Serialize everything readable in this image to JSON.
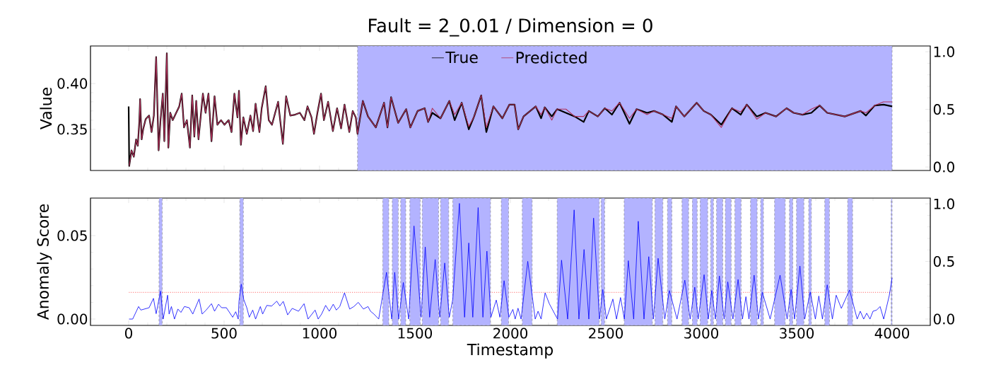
{
  "chart_data": [
    {
      "type": "line",
      "title": "Fault = 2_0.01 / Dimension = 0",
      "ylabel": "Value",
      "legend": "top",
      "tick_labels": "y",
      "xlim": [
        -200,
        4200
      ],
      "xticks": [
        0,
        500,
        1000,
        1500,
        2000,
        2500,
        3000,
        3500,
        4000
      ],
      "ylim": [
        0.305,
        0.441
      ],
      "yticks": [
        {
          "value": 0.35,
          "label": "0.35"
        },
        {
          "value": 0.4,
          "label": "0.40"
        }
      ],
      "y2lim": [
        -0.03,
        1.05
      ],
      "y2ticks": [
        {
          "value": 0,
          "label": "0.0"
        },
        {
          "value": 0.5,
          "label": "0.5"
        },
        {
          "value": 1,
          "label": "1.0"
        }
      ],
      "bands": [
        {
          "axis": "x",
          "from": 1199,
          "to": 4000,
          "color": "#b3b3ff"
        }
      ],
      "series": [
        {
          "name": "True",
          "color": "#000000",
          "x": [
            0,
            3,
            15,
            27,
            39,
            48,
            56,
            60,
            68,
            76,
            89,
            107,
            120,
            132,
            144,
            157,
            167,
            179,
            187,
            200,
            208,
            218,
            231,
            249,
            265,
            278,
            290,
            305,
            321,
            333,
            344,
            354,
            366,
            389,
            403,
            418,
            434,
            450,
            465,
            484,
            502,
            524,
            539,
            554,
            570,
            578,
            588,
            601,
            619,
            638,
            652,
            665,
            685,
            697,
            718,
            734,
            751,
            783,
            808,
            825,
            847,
            872,
            897,
            921,
            937,
            958,
            971,
            989,
            1008,
            1023,
            1045,
            1070,
            1092,
            1113,
            1131,
            1156,
            1174,
            1190,
            1199,
            1227,
            1254,
            1295,
            1338,
            1356,
            1375,
            1412,
            1454,
            1476,
            1514,
            1551,
            1569,
            1591,
            1634,
            1680,
            1708,
            1745,
            1782,
            1810,
            1847,
            1874,
            1911,
            1958,
            1995,
            2022,
            2041,
            2069,
            2133,
            2161,
            2180,
            2217,
            2245,
            2291,
            2337,
            2384,
            2411,
            2458,
            2495,
            2532,
            2572,
            2624,
            2661,
            2716,
            2753,
            2800,
            2846,
            2868,
            2911,
            2976,
            3013,
            3050,
            3105,
            3161,
            3207,
            3238,
            3291,
            3337,
            3392,
            3447,
            3484,
            3530,
            3577,
            3620,
            3660,
            3752,
            3835,
            3863,
            3909,
            3955,
            4000
          ],
          "values": [
            0.375,
            0.31,
            0.327,
            0.32,
            0.339,
            0.332,
            0.359,
            0.383,
            0.339,
            0.35,
            0.361,
            0.365,
            0.347,
            0.365,
            0.429,
            0.327,
            0.36,
            0.389,
            0.337,
            0.433,
            0.33,
            0.368,
            0.36,
            0.368,
            0.375,
            0.389,
            0.352,
            0.36,
            0.33,
            0.387,
            0.342,
            0.381,
            0.339,
            0.389,
            0.368,
            0.389,
            0.337,
            0.386,
            0.355,
            0.36,
            0.355,
            0.36,
            0.347,
            0.389,
            0.363,
            0.392,
            0.333,
            0.363,
            0.345,
            0.365,
            0.348,
            0.378,
            0.347,
            0.373,
            0.397,
            0.36,
            0.355,
            0.38,
            0.334,
            0.386,
            0.365,
            0.366,
            0.368,
            0.36,
            0.375,
            0.363,
            0.345,
            0.368,
            0.389,
            0.36,
            0.38,
            0.348,
            0.373,
            0.351,
            0.377,
            0.347,
            0.37,
            0.363,
            0.345,
            0.381,
            0.364,
            0.352,
            0.379,
            0.352,
            0.385,
            0.357,
            0.372,
            0.352,
            0.37,
            0.373,
            0.358,
            0.368,
            0.362,
            0.381,
            0.36,
            0.379,
            0.35,
            0.364,
            0.387,
            0.347,
            0.375,
            0.362,
            0.377,
            0.377,
            0.35,
            0.364,
            0.375,
            0.362,
            0.374,
            0.364,
            0.372,
            0.368,
            0.364,
            0.358,
            0.37,
            0.364,
            0.373,
            0.366,
            0.379,
            0.356,
            0.372,
            0.368,
            0.37,
            0.366,
            0.358,
            0.375,
            0.364,
            0.379,
            0.37,
            0.366,
            0.355,
            0.373,
            0.366,
            0.377,
            0.364,
            0.368,
            0.364,
            0.373,
            0.368,
            0.366,
            0.368,
            0.376,
            0.368,
            0.364,
            0.37,
            0.365,
            0.376,
            0.377,
            0.375
          ]
        },
        {
          "name": "Predicted",
          "color": "#b0305a",
          "x": [
            3,
            15,
            27,
            39,
            48,
            56,
            60,
            68,
            76,
            89,
            107,
            120,
            132,
            144,
            157,
            167,
            179,
            187,
            200,
            208,
            218,
            231,
            249,
            265,
            278,
            290,
            305,
            321,
            333,
            344,
            354,
            366,
            389,
            403,
            418,
            434,
            450,
            465,
            484,
            502,
            524,
            539,
            554,
            570,
            578,
            588,
            601,
            619,
            638,
            652,
            665,
            685,
            697,
            718,
            734,
            751,
            783,
            808,
            825,
            847,
            872,
            897,
            921,
            937,
            958,
            971,
            989,
            1008,
            1023,
            1045,
            1070,
            1092,
            1113,
            1131,
            1156,
            1174,
            1190,
            1199,
            1227,
            1254,
            1295,
            1338,
            1356,
            1375,
            1412,
            1454,
            1476,
            1514,
            1551,
            1569,
            1591,
            1634,
            1680,
            1708,
            1745,
            1782,
            1810,
            1847,
            1874,
            1911,
            1958,
            1995,
            2022,
            2041,
            2069,
            2133,
            2161,
            2180,
            2217,
            2245,
            2291,
            2337,
            2384,
            2411,
            2458,
            2495,
            2532,
            2572,
            2624,
            2661,
            2716,
            2753,
            2800,
            2846,
            2868,
            2911,
            2976,
            3013,
            3050,
            3105,
            3161,
            3207,
            3238,
            3291,
            3337,
            3392,
            3447,
            3484,
            3530,
            3577,
            3620,
            3660,
            3752,
            3835,
            3863,
            3909,
            3955,
            4000
          ],
          "values": [
            0.31,
            0.327,
            0.32,
            0.339,
            0.332,
            0.359,
            0.383,
            0.339,
            0.35,
            0.361,
            0.365,
            0.347,
            0.365,
            0.429,
            0.327,
            0.36,
            0.389,
            0.337,
            0.433,
            0.33,
            0.368,
            0.36,
            0.368,
            0.375,
            0.389,
            0.352,
            0.36,
            0.33,
            0.387,
            0.342,
            0.381,
            0.339,
            0.389,
            0.368,
            0.389,
            0.337,
            0.386,
            0.355,
            0.36,
            0.355,
            0.36,
            0.347,
            0.389,
            0.363,
            0.392,
            0.333,
            0.363,
            0.345,
            0.365,
            0.348,
            0.378,
            0.347,
            0.373,
            0.397,
            0.36,
            0.355,
            0.38,
            0.334,
            0.386,
            0.365,
            0.366,
            0.368,
            0.36,
            0.375,
            0.363,
            0.345,
            0.368,
            0.389,
            0.36,
            0.38,
            0.348,
            0.373,
            0.351,
            0.377,
            0.347,
            0.37,
            0.363,
            0.345,
            0.381,
            0.364,
            0.352,
            0.379,
            0.352,
            0.385,
            0.357,
            0.372,
            0.352,
            0.37,
            0.373,
            0.358,
            0.373,
            0.362,
            0.381,
            0.366,
            0.379,
            0.353,
            0.364,
            0.387,
            0.352,
            0.375,
            0.362,
            0.377,
            0.377,
            0.35,
            0.364,
            0.375,
            0.366,
            0.374,
            0.36,
            0.372,
            0.372,
            0.364,
            0.364,
            0.37,
            0.364,
            0.373,
            0.37,
            0.379,
            0.362,
            0.372,
            0.366,
            0.37,
            0.366,
            0.362,
            0.375,
            0.364,
            0.379,
            0.37,
            0.366,
            0.352,
            0.373,
            0.369,
            0.377,
            0.361,
            0.368,
            0.364,
            0.373,
            0.368,
            0.366,
            0.372,
            0.376,
            0.368,
            0.364,
            0.37,
            0.368,
            0.376,
            0.38,
            0.38
          ]
        }
      ]
    },
    {
      "type": "line",
      "xlabel": "Timestamp",
      "ylabel": "Anomaly Score",
      "xlim": [
        -200,
        4200
      ],
      "xticks": [
        0,
        500,
        1000,
        1500,
        2000,
        2500,
        3000,
        3500,
        4000
      ],
      "ylim": [
        -0.0038,
        0.0725
      ],
      "yticks": [
        {
          "value": 0,
          "label": "0.00"
        },
        {
          "value": 0.05,
          "label": "0.05"
        }
      ],
      "y2lim": [
        -0.055,
        1.05
      ],
      "y2ticks": [
        {
          "value": 0,
          "label": "0.0"
        },
        {
          "value": 0.5,
          "label": "0.5"
        },
        {
          "value": 1,
          "label": "1.0"
        }
      ],
      "ref_lines": [
        {
          "axis": "y",
          "value": 0.016,
          "color": "#ff0000",
          "line_style": "dotted"
        }
      ],
      "bands": [
        {
          "axis": "x",
          "from": 159,
          "to": 176,
          "color": "#b3b3ff"
        },
        {
          "axis": "x",
          "from": 582,
          "to": 601,
          "color": "#b3b3ff"
        },
        {
          "axis": "x",
          "from": 1331,
          "to": 1363,
          "color": "#b3b3ff"
        },
        {
          "axis": "x",
          "from": 1381,
          "to": 1413,
          "color": "#b3b3ff"
        },
        {
          "axis": "x",
          "from": 1425,
          "to": 1452,
          "color": "#b3b3ff"
        },
        {
          "axis": "x",
          "from": 1473,
          "to": 1528,
          "color": "#b3b3ff"
        },
        {
          "axis": "x",
          "from": 1538,
          "to": 1624,
          "color": "#b3b3ff"
        },
        {
          "axis": "x",
          "from": 1634,
          "to": 1677,
          "color": "#b3b3ff"
        },
        {
          "axis": "x",
          "from": 1698,
          "to": 1896,
          "color": "#b3b3ff"
        },
        {
          "axis": "x",
          "from": 1952,
          "to": 1991,
          "color": "#b3b3ff"
        },
        {
          "axis": "x",
          "from": 2062,
          "to": 2114,
          "color": "#b3b3ff"
        },
        {
          "axis": "x",
          "from": 2245,
          "to": 2466,
          "color": "#b3b3ff"
        },
        {
          "axis": "x",
          "from": 2475,
          "to": 2494,
          "color": "#b3b3ff"
        },
        {
          "axis": "x",
          "from": 2596,
          "to": 2744,
          "color": "#b3b3ff"
        },
        {
          "axis": "x",
          "from": 2757,
          "to": 2799,
          "color": "#b3b3ff"
        },
        {
          "axis": "x",
          "from": 2823,
          "to": 2846,
          "color": "#b3b3ff"
        },
        {
          "axis": "x",
          "from": 2899,
          "to": 2934,
          "color": "#b3b3ff"
        },
        {
          "axis": "x",
          "from": 2953,
          "to": 2979,
          "color": "#b3b3ff"
        },
        {
          "axis": "x",
          "from": 2994,
          "to": 3034,
          "color": "#b3b3ff"
        },
        {
          "axis": "x",
          "from": 3049,
          "to": 3064,
          "color": "#b3b3ff"
        },
        {
          "axis": "x",
          "from": 3080,
          "to": 3113,
          "color": "#b3b3ff"
        },
        {
          "axis": "x",
          "from": 3126,
          "to": 3157,
          "color": "#b3b3ff"
        },
        {
          "axis": "x",
          "from": 3176,
          "to": 3209,
          "color": "#b3b3ff"
        },
        {
          "axis": "x",
          "from": 3258,
          "to": 3293,
          "color": "#b3b3ff"
        },
        {
          "axis": "x",
          "from": 3311,
          "to": 3326,
          "color": "#b3b3ff"
        },
        {
          "axis": "x",
          "from": 3384,
          "to": 3440,
          "color": "#b3b3ff"
        },
        {
          "axis": "x",
          "from": 3462,
          "to": 3480,
          "color": "#b3b3ff"
        },
        {
          "axis": "x",
          "from": 3499,
          "to": 3538,
          "color": "#b3b3ff"
        },
        {
          "axis": "x",
          "from": 3563,
          "to": 3577,
          "color": "#b3b3ff"
        },
        {
          "axis": "x",
          "from": 3647,
          "to": 3672,
          "color": "#b3b3ff"
        },
        {
          "axis": "x",
          "from": 3767,
          "to": 3793,
          "color": "#b3b3ff"
        },
        {
          "axis": "x",
          "from": 3995,
          "to": 4000,
          "color": "#b3b3ff"
        }
      ],
      "series": [
        {
          "color": "#0000ff",
          "x": [
            2,
            21,
            52,
            64,
            107,
            130,
            144,
            167,
            181,
            204,
            212,
            224,
            240,
            258,
            274,
            292,
            317,
            336,
            369,
            385,
            406,
            434,
            450,
            471,
            487,
            512,
            545,
            561,
            574,
            578,
            590,
            603,
            619,
            632,
            650,
            665,
            690,
            702,
            724,
            749,
            776,
            792,
            810,
            833,
            857,
            890,
            919,
            940,
            977,
            993,
            1011,
            1032,
            1051,
            1072,
            1088,
            1106,
            1131,
            1158,
            1180,
            1203,
            1230,
            1254,
            1267,
            1285,
            1310,
            1331,
            1351,
            1378,
            1394,
            1415,
            1439,
            1467,
            1495,
            1532,
            1554,
            1577,
            1606,
            1630,
            1656,
            1680,
            1698,
            1733,
            1760,
            1782,
            1803,
            1831,
            1856,
            1877,
            1898,
            1926,
            1945,
            1967,
            1992,
            2013,
            2025,
            2040,
            2056,
            2091,
            2130,
            2145,
            2161,
            2182,
            2204,
            2235,
            2247,
            2268,
            2300,
            2334,
            2359,
            2386,
            2411,
            2436,
            2467,
            2484,
            2503,
            2537,
            2556,
            2577,
            2597,
            2618,
            2646,
            2670,
            2700,
            2725,
            2749,
            2774,
            2809,
            2833,
            2873,
            2914,
            2942,
            2966,
            2984,
            3015,
            3037,
            3055,
            3074,
            3095,
            3120,
            3139,
            3166,
            3193,
            3216,
            3234,
            3250,
            3277,
            3300,
            3320,
            3361,
            3413,
            3450,
            3471,
            3489,
            3517,
            3542,
            3571,
            3598,
            3616,
            3635,
            3660,
            3687,
            3707,
            3734,
            3777,
            3817,
            3833,
            3851,
            3867,
            3884,
            3900,
            3919,
            3937,
            3956,
            3985,
            4000
          ],
          "values": [
            0,
            0,
            0.0075,
            0.0054,
            0.0068,
            0.0124,
            0.0032,
            0.0167,
            0,
            0.0143,
            0.003,
            0.0075,
            0,
            0.006,
            0.004,
            0.0075,
            0.0068,
            0.003,
            0.012,
            0.003,
            0.0054,
            0.0092,
            0.0047,
            0.0089,
            0.0068,
            0.0068,
            0.0011,
            0.0044,
            0,
            0.0106,
            0.0209,
            0.0117,
            0.0068,
            0.0011,
            0.0054,
            0,
            0.0075,
            0.003,
            0.0082,
            0.0078,
            0.0107,
            0.0079,
            0.0106,
            0.0025,
            0.0064,
            0.0047,
            0.0092,
            0,
            0.0054,
            0,
            0.003,
            0.0082,
            0.0047,
            0.0089,
            0.0054,
            0.0075,
            0.0157,
            0.006,
            0.0075,
            0.01,
            0.006,
            0.0075,
            0.0047,
            0.003,
            0,
            0.0145,
            0.028,
            0,
            0.028,
            0,
            0.0219,
            0,
            0.0558,
            0.0011,
            0.0432,
            0.0011,
            0.0357,
            0.0011,
            0.0336,
            0.0011,
            0.0117,
            0.0693,
            0.0011,
            0.0456,
            0.0011,
            0.0668,
            0.0011,
            0.0407,
            0.0011,
            0.0114,
            0.0011,
            0.023,
            0.0011,
            0.0058,
            0,
            0.0065,
            0,
            0.0346,
            0,
            0.0047,
            0,
            0.0157,
            0.0092,
            0.0025,
            0,
            0.0353,
            0,
            0.0654,
            0,
            0.0417,
            0,
            0.0605,
            0,
            0.0177,
            0,
            0.012,
            0,
            0.0129,
            0,
            0.035,
            0,
            0.0586,
            0,
            0.0374,
            0,
            0.0364,
            0,
            0.0171,
            0,
            0.0233,
            0,
            0.0191,
            0,
            0.0266,
            0,
            0.0171,
            0,
            0.0258,
            0,
            0.0223,
            0,
            0.0237,
            0,
            0.0134,
            0,
            0.0263,
            0,
            0.016,
            0,
            0.0263,
            0,
            0.0177,
            0,
            0.0318,
            0,
            0.0162,
            0,
            0.0138,
            0,
            0.0205,
            0,
            0.0143,
            0.0064,
            0.0174,
            0,
            0.0047,
            0,
            0.0035,
            0,
            0.0047,
            0.0054,
            0.0075,
            0,
            0.014,
            0.0247
          ]
        }
      ]
    }
  ]
}
